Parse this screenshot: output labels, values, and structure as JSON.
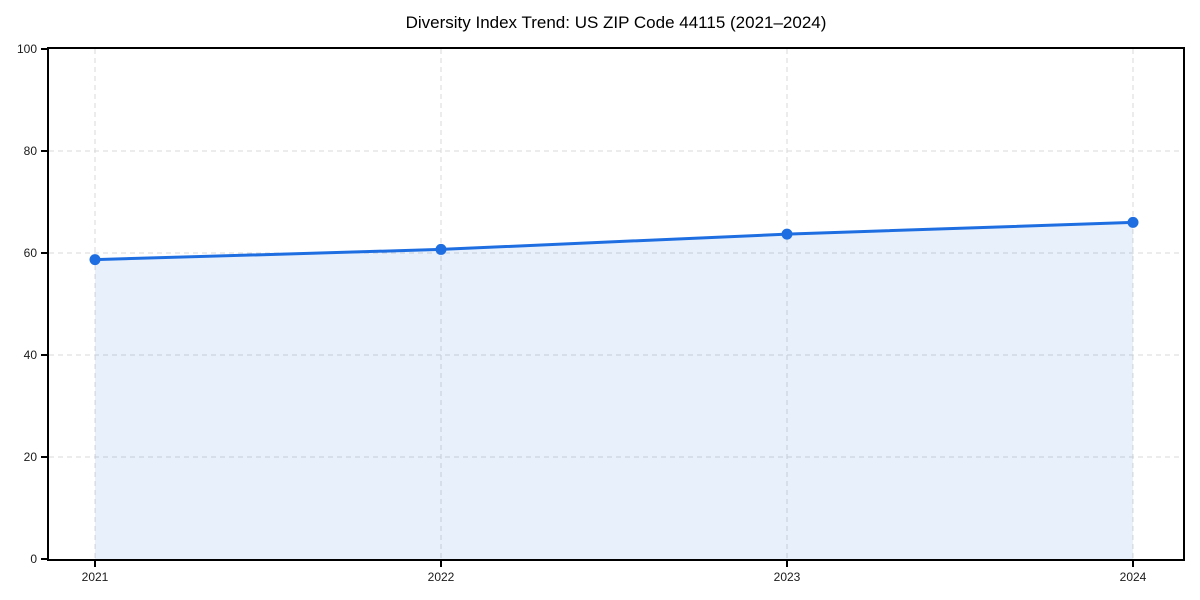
{
  "chart_data": {
    "type": "area",
    "title": "Diversity Index Trend: US ZIP Code 44115 (2021–2024)",
    "categories": [
      "2021",
      "2022",
      "2023",
      "2024"
    ],
    "series": [
      {
        "name": "Diversity Index",
        "values": [
          58.7,
          60.7,
          63.7,
          66.0
        ]
      }
    ],
    "xlabel": "",
    "ylabel": "",
    "ylim": [
      0,
      100
    ],
    "y_ticks": [
      0,
      20,
      40,
      60,
      80,
      100
    ],
    "grid": true,
    "grid_style": "dashed",
    "legend": false,
    "colors": {
      "line": "#1e6ee1",
      "marker": "#1e6ee1",
      "fill": "rgba(30,110,225,0.10)",
      "grid": "#d9d9d9",
      "spine": "#000000",
      "tick_label": "#1a1a1a",
      "title": "#000000",
      "background": "#ffffff"
    }
  }
}
